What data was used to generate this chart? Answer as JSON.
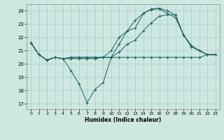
{
  "xlabel": "Humidex (Indice chaleur)",
  "bg_color": "#cce8e0",
  "grid_color": "#aacccc",
  "line_color": "#1a5f5f",
  "xlim": [
    -0.5,
    23.5
  ],
  "ylim": [
    16.6,
    24.5
  ],
  "xticks": [
    0,
    1,
    2,
    3,
    4,
    5,
    6,
    7,
    8,
    9,
    10,
    11,
    12,
    13,
    14,
    15,
    16,
    17,
    18,
    19,
    20,
    21,
    22,
    23
  ],
  "yticks": [
    17,
    18,
    19,
    20,
    21,
    22,
    23,
    24
  ],
  "series": [
    [
      21.6,
      20.7,
      20.3,
      20.5,
      20.4,
      20.4,
      20.4,
      20.4,
      20.4,
      20.5,
      20.5,
      20.5,
      20.5,
      20.5,
      20.5,
      20.5,
      20.5,
      20.5,
      20.5,
      20.5,
      20.5,
      20.5,
      20.7,
      20.7
    ],
    [
      21.6,
      20.7,
      20.3,
      20.5,
      20.4,
      19.5,
      18.5,
      17.1,
      18.1,
      18.6,
      20.5,
      21.5,
      22.5,
      23.3,
      23.8,
      24.1,
      24.15,
      23.8,
      23.5,
      22.2,
      21.3,
      21.0,
      20.7,
      20.7
    ],
    [
      21.6,
      20.7,
      20.3,
      20.5,
      20.4,
      20.5,
      20.5,
      20.5,
      20.5,
      20.5,
      20.5,
      20.9,
      21.5,
      21.8,
      22.5,
      23.1,
      23.6,
      23.7,
      23.7,
      22.2,
      21.3,
      21.0,
      20.7,
      20.7
    ],
    [
      21.6,
      20.7,
      20.3,
      20.5,
      20.4,
      20.5,
      20.5,
      20.5,
      20.5,
      20.5,
      21.0,
      22.0,
      22.5,
      22.7,
      23.8,
      24.15,
      24.2,
      24.0,
      23.7,
      22.2,
      21.4,
      21.0,
      20.7,
      20.7
    ]
  ],
  "figsize": [
    3.2,
    2.0
  ],
  "dpi": 100
}
